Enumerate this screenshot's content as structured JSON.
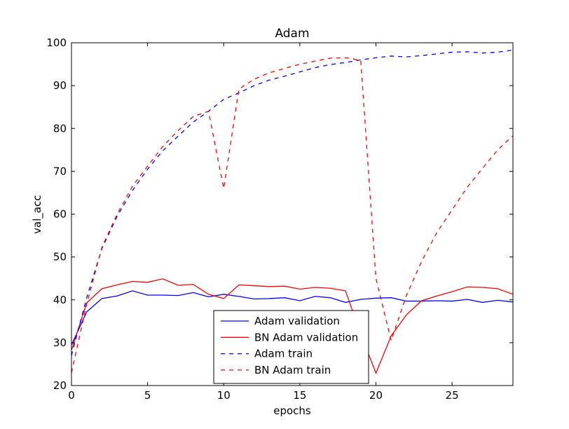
{
  "chart_data": {
    "type": "line",
    "title": "Adam",
    "xlabel": "epochs",
    "ylabel": "val_acc",
    "xlim": [
      0,
      29
    ],
    "ylim": [
      20,
      100
    ],
    "x_ticks": [
      0,
      5,
      10,
      15,
      20,
      25
    ],
    "y_ticks": [
      20,
      30,
      40,
      50,
      60,
      70,
      80,
      90,
      100
    ],
    "grid": false,
    "legend_position": "bottom-center",
    "x": [
      0,
      1,
      2,
      3,
      4,
      5,
      6,
      7,
      8,
      9,
      10,
      11,
      12,
      13,
      14,
      15,
      16,
      17,
      18,
      19,
      20,
      21,
      22,
      23,
      24,
      25,
      26,
      27,
      28,
      29
    ],
    "series": [
      {
        "name": "Adam validation",
        "color": "#0000ff",
        "style": "solid",
        "values": [
          29.5,
          37.2,
          40.3,
          40.9,
          42.1,
          41.1,
          41.1,
          41.0,
          41.7,
          40.7,
          41.3,
          40.8,
          40.2,
          40.3,
          40.5,
          39.8,
          40.8,
          40.5,
          39.4,
          40.1,
          40.4,
          40.5,
          39.7,
          39.7,
          39.8,
          39.7,
          40.1,
          39.4,
          39.9,
          39.5
        ]
      },
      {
        "name": "BN Adam validation",
        "color": "#ff0000",
        "style": "solid",
        "values": [
          28.3,
          39.3,
          42.6,
          43.5,
          44.3,
          44.1,
          44.9,
          43.4,
          43.6,
          41.3,
          40.3,
          43.5,
          43.3,
          43.1,
          43.2,
          42.5,
          42.9,
          42.7,
          42.1,
          32.0,
          22.9,
          31.6,
          36.5,
          39.8,
          40.9,
          41.9,
          43.0,
          42.9,
          42.6,
          41.3
        ]
      },
      {
        "name": "Adam train",
        "color": "#0000ff",
        "style": "dashed",
        "values": [
          27.0,
          40.5,
          52.0,
          59.5,
          65.5,
          70.5,
          74.8,
          78.2,
          81.5,
          84.0,
          86.8,
          88.3,
          90.0,
          91.3,
          92.2,
          93.2,
          94.2,
          94.9,
          95.4,
          96.0,
          96.5,
          96.9,
          96.7,
          97.0,
          97.4,
          97.8,
          97.9,
          97.6,
          97.8,
          98.3
        ]
      },
      {
        "name": "BN Adam train",
        "color": "#ff0000",
        "style": "dashed",
        "values": [
          23.0,
          39.0,
          52.3,
          60.0,
          66.5,
          71.2,
          75.8,
          79.5,
          82.8,
          84.0,
          66.0,
          89.2,
          91.5,
          93.0,
          94.0,
          95.0,
          95.7,
          96.4,
          96.5,
          95.9,
          45.0,
          30.5,
          41.0,
          49.0,
          55.7,
          61.0,
          66.3,
          70.7,
          75.0,
          78.3
        ]
      }
    ]
  }
}
